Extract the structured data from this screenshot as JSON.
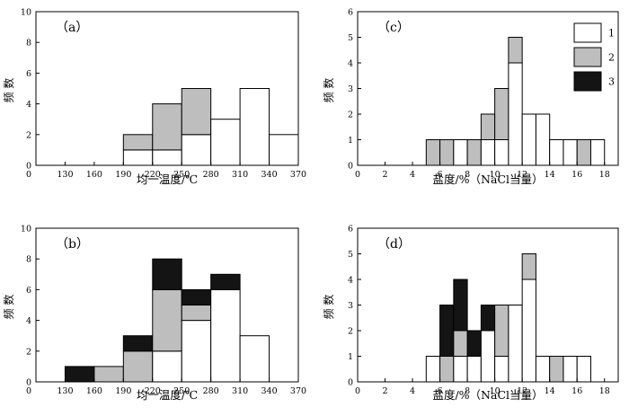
{
  "legend": {
    "entries": [
      {
        "label": "1",
        "color": "#ffffff"
      },
      {
        "label": "2",
        "color": "#bebebe"
      },
      {
        "label": "3",
        "color": "#141414"
      }
    ]
  },
  "chart_data": [
    {
      "type": "bar",
      "stacked": true,
      "panel_label": "（a）",
      "xlabel": "均一温度/℃",
      "ylabel": "频 数",
      "x_ticks": [
        130,
        160,
        190,
        220,
        250,
        280,
        310,
        340,
        370
      ],
      "xlim": [
        100,
        370
      ],
      "ylim": [
        0,
        10
      ],
      "y_ticks": [
        0,
        2,
        4,
        6,
        8,
        10
      ],
      "bins": [
        [
          190,
          220
        ],
        [
          220,
          250
        ],
        [
          250,
          280
        ],
        [
          280,
          310
        ],
        [
          310,
          340
        ],
        [
          340,
          370
        ]
      ],
      "series": [
        {
          "name": "1",
          "color": "#ffffff",
          "values": [
            1,
            1,
            2,
            3,
            5,
            2
          ]
        },
        {
          "name": "2",
          "color": "#bebebe",
          "values": [
            1,
            3,
            3,
            0,
            0,
            0
          ]
        }
      ]
    },
    {
      "type": "bar",
      "stacked": true,
      "panel_label": "（b）",
      "xlabel": "均一温度/℃",
      "ylabel": "频 数",
      "x_ticks": [
        130,
        160,
        190,
        220,
        250,
        280,
        310,
        340,
        370
      ],
      "xlim": [
        100,
        370
      ],
      "ylim": [
        0,
        10
      ],
      "y_ticks": [
        0,
        2,
        4,
        6,
        8,
        10
      ],
      "bins": [
        [
          130,
          160
        ],
        [
          160,
          190
        ],
        [
          190,
          220
        ],
        [
          220,
          250
        ],
        [
          250,
          280
        ],
        [
          280,
          310
        ],
        [
          310,
          340
        ]
      ],
      "series": [
        {
          "name": "1",
          "color": "#ffffff",
          "values": [
            0,
            0,
            0,
            2,
            4,
            6,
            3
          ]
        },
        {
          "name": "2",
          "color": "#bebebe",
          "values": [
            0,
            1,
            2,
            4,
            1,
            0,
            0
          ]
        },
        {
          "name": "3",
          "color": "#141414",
          "values": [
            1,
            0,
            1,
            2,
            1,
            1,
            0
          ]
        }
      ]
    },
    {
      "type": "bar",
      "stacked": true,
      "panel_label": "（c）",
      "xlabel": "盐度/%（NaCl当量）",
      "ylabel": "频 数",
      "x_ticks": [
        0,
        2,
        4,
        6,
        8,
        10,
        12,
        14,
        16,
        18
      ],
      "xlim": [
        0,
        19
      ],
      "ylim": [
        0,
        6
      ],
      "y_ticks": [
        0,
        1,
        2,
        3,
        4,
        5,
        6
      ],
      "bins": [
        [
          5,
          6
        ],
        [
          6,
          7
        ],
        [
          7,
          8
        ],
        [
          8,
          9
        ],
        [
          9,
          10
        ],
        [
          10,
          11
        ],
        [
          11,
          12
        ],
        [
          12,
          13
        ],
        [
          13,
          14
        ],
        [
          14,
          15
        ],
        [
          15,
          16
        ],
        [
          16,
          17
        ],
        [
          17,
          18
        ]
      ],
      "series": [
        {
          "name": "1",
          "color": "#ffffff",
          "values": [
            0,
            0,
            1,
            0,
            1,
            1,
            4,
            2,
            2,
            1,
            1,
            0,
            1
          ]
        },
        {
          "name": "2",
          "color": "#bebebe",
          "values": [
            1,
            1,
            0,
            1,
            1,
            2,
            1,
            0,
            0,
            0,
            0,
            1,
            0
          ]
        }
      ]
    },
    {
      "type": "bar",
      "stacked": true,
      "panel_label": "（d）",
      "xlabel": "盐度/%（NaCl当量）",
      "ylabel": "频 数",
      "x_ticks": [
        0,
        2,
        4,
        6,
        8,
        10,
        12,
        14,
        16,
        18
      ],
      "xlim": [
        0,
        19
      ],
      "ylim": [
        0,
        6
      ],
      "y_ticks": [
        0,
        1,
        2,
        3,
        4,
        5,
        6
      ],
      "bins": [
        [
          5,
          6
        ],
        [
          6,
          7
        ],
        [
          7,
          8
        ],
        [
          8,
          9
        ],
        [
          9,
          10
        ],
        [
          10,
          11
        ],
        [
          11,
          12
        ],
        [
          12,
          13
        ],
        [
          13,
          14
        ],
        [
          14,
          15
        ],
        [
          15,
          16
        ],
        [
          16,
          17
        ]
      ],
      "series": [
        {
          "name": "1",
          "color": "#ffffff",
          "values": [
            1,
            0,
            1,
            1,
            2,
            1,
            3,
            4,
            1,
            0,
            1,
            1
          ]
        },
        {
          "name": "2",
          "color": "#bebebe",
          "values": [
            0,
            1,
            1,
            0,
            0,
            2,
            0,
            1,
            0,
            1,
            0,
            0
          ]
        },
        {
          "name": "3",
          "color": "#141414",
          "values": [
            0,
            2,
            2,
            1,
            1,
            0,
            0,
            0,
            0,
            0,
            0,
            0
          ]
        }
      ]
    }
  ]
}
